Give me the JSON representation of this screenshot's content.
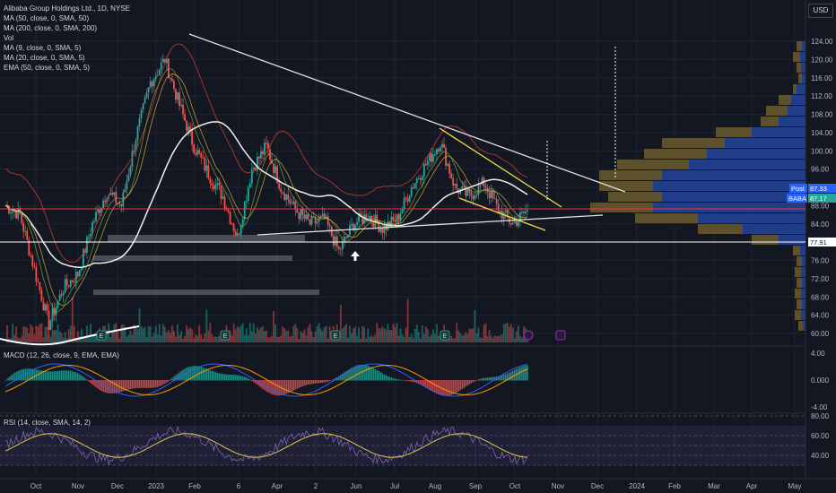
{
  "header": {
    "title": "Alibaba Group Holdings Ltd., 1D, NYSE",
    "currency": "USD"
  },
  "indicators": {
    "main": [
      "MA (50, close, 0, SMA, 50)",
      "MA (200, close, 0, SMA, 200)",
      "Vol",
      "MA (9, close, 0, SMA, 5)",
      "MA (20, close, 0, SMA, 5)",
      "EMA (50, close, 0, SMA, 5)"
    ],
    "macd": "MACD (12, 26, close, 9, EMA, EMA)",
    "rsi": "RSI (14, close, SMA, 14, 2)"
  },
  "price_labels": {
    "post_tag": "Post",
    "post_value": "87.33",
    "symbol_tag": "BABA",
    "symbol_value": "87.17",
    "level_value": "77.91"
  },
  "event_markers": [
    "E",
    "E",
    "E",
    "E",
    "E"
  ],
  "colors": {
    "background": "#131722",
    "up": "#26a69a",
    "down": "#ef5350",
    "ma50": "#f0f0f0",
    "ma200": "#b2382f",
    "ema": "#e3b341",
    "trendline": "#e0e0e0",
    "wedge": "#f5e04a",
    "profile_up": "#1e3c8c",
    "profile_down": "#6b5a2e",
    "rsi": "#d4b94b",
    "symbol_tag_bg": "#2962ff"
  },
  "chart_data": {
    "type": "candlestick",
    "symbol": "BABA",
    "exchange": "NYSE",
    "interval": "1D",
    "x_ticks": [
      "Oct",
      "Nov",
      "Dec",
      "2023",
      "Feb",
      "6",
      "Apr",
      "2",
      "Jun",
      "Jul",
      "Aug",
      "Sep",
      "Oct",
      "Nov",
      "Dec",
      "2024",
      "Feb",
      "Mar",
      "Apr",
      "May"
    ],
    "y_ticks": [
      "124.00",
      "120.00",
      "116.00",
      "112.00",
      "108.00",
      "104.00",
      "100.00",
      "96.00",
      "92.00",
      "88.00",
      "84.00",
      "80.00",
      "76.00",
      "72.00",
      "68.00",
      "64.00",
      "60.00"
    ],
    "ylim": [
      58,
      126
    ],
    "close_series": [
      {
        "x": "Oct",
        "y": 88
      },
      {
        "x": "Oct-mid",
        "y": 86
      },
      {
        "x": "Oct-late",
        "y": 74
      },
      {
        "x": "Nov",
        "y": 62
      },
      {
        "x": "Nov-mid",
        "y": 70
      },
      {
        "x": "Nov-late",
        "y": 73
      },
      {
        "x": "Dec",
        "y": 84
      },
      {
        "x": "Dec-mid",
        "y": 91
      },
      {
        "x": "Dec-late",
        "y": 88
      },
      {
        "x": "2023",
        "y": 103
      },
      {
        "x": "Jan-mid",
        "y": 115
      },
      {
        "x": "Jan-late",
        "y": 120
      },
      {
        "x": "Feb",
        "y": 110
      },
      {
        "x": "Feb-mid",
        "y": 101
      },
      {
        "x": "Feb-late",
        "y": 95
      },
      {
        "x": "6",
        "y": 90
      },
      {
        "x": "Mar-mid",
        "y": 81
      },
      {
        "x": "Mar-late",
        "y": 96
      },
      {
        "x": "Apr",
        "y": 101
      },
      {
        "x": "Apr-mid",
        "y": 92
      },
      {
        "x": "Apr-late",
        "y": 87
      },
      {
        "x": "2",
        "y": 84
      },
      {
        "x": "May-mid",
        "y": 85
      },
      {
        "x": "May-late",
        "y": 78
      },
      {
        "x": "Jun",
        "y": 84
      },
      {
        "x": "Jun-mid",
        "y": 86
      },
      {
        "x": "Jun-late",
        "y": 83
      },
      {
        "x": "Jul",
        "y": 85
      },
      {
        "x": "Jul-mid",
        "y": 92
      },
      {
        "x": "Jul-late",
        "y": 97
      },
      {
        "x": "Aug",
        "y": 102
      },
      {
        "x": "Aug-mid",
        "y": 92
      },
      {
        "x": "Aug-late",
        "y": 90
      },
      {
        "x": "Sep",
        "y": 93
      },
      {
        "x": "Sep-mid",
        "y": 87
      },
      {
        "x": "Sep-late",
        "y": 84
      },
      {
        "x": "Oct",
        "y": 87
      }
    ],
    "levels": [
      {
        "name": "",
        "y": 87.33
      },
      {
        "name": "",
        "y": 77.91
      }
    ],
    "macd_ticks": [
      "4.00",
      "0.000",
      "-4.00"
    ],
    "rsi_ticks": [
      "80.00",
      "60.00",
      "40.00"
    ],
    "macd_lim": [
      -4.5,
      4.5
    ],
    "rsi_lim": [
      25,
      82
    ],
    "grid": true,
    "legend": "top-left"
  }
}
